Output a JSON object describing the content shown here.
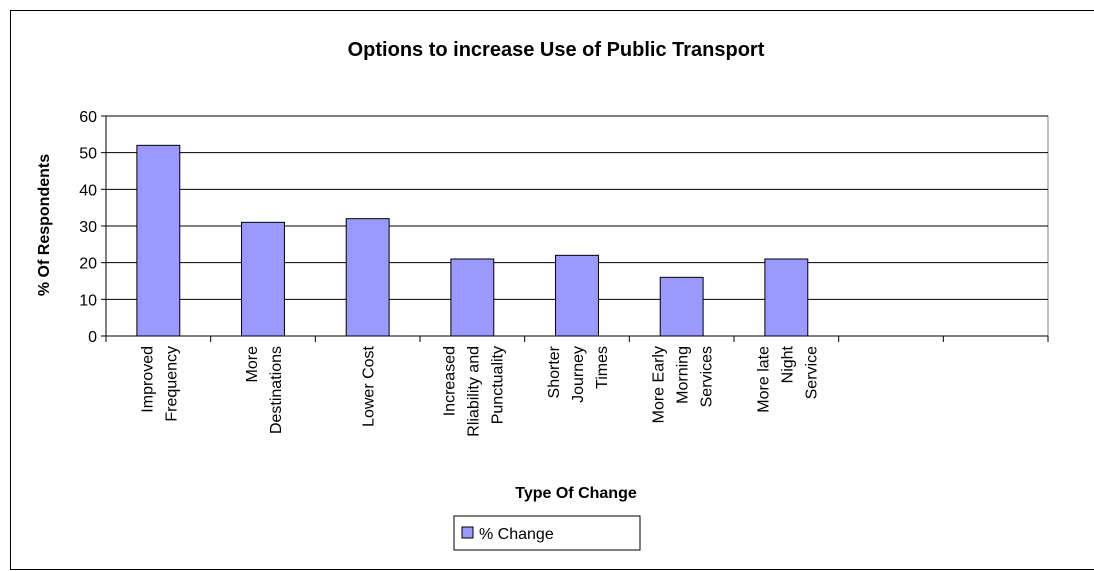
{
  "chart_data": {
    "type": "bar",
    "title": "Options to increase Use of Public Transport",
    "xlabel": "Type Of Change",
    "ylabel": "% Of Respondents",
    "ylim": [
      0,
      60
    ],
    "yticks": [
      0,
      10,
      20,
      30,
      40,
      50,
      60
    ],
    "grid": true,
    "legend_position": "bottom",
    "bar_color": "#9999ff",
    "categories": [
      [
        "Improved",
        "Frequency"
      ],
      [
        "More",
        "Destinations"
      ],
      [
        "Lower Cost"
      ],
      [
        "Increased",
        "Rliability and",
        "Punctuality"
      ],
      [
        "Shorter",
        "Journey",
        "Times"
      ],
      [
        "More Early",
        "Morning",
        "Services"
      ],
      [
        "More late",
        "Night",
        "Service"
      ],
      [],
      []
    ],
    "series": [
      {
        "name": "% Change",
        "values": [
          52,
          31,
          32,
          21,
          22,
          16,
          21,
          null,
          null
        ]
      }
    ]
  }
}
